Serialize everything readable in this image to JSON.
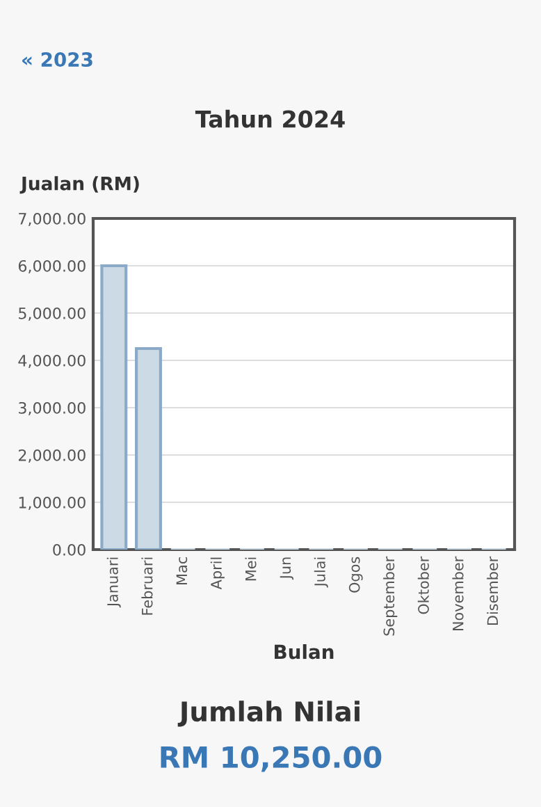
{
  "chart_data": {
    "type": "bar",
    "title": "Tahun 2024",
    "xlabel": "Bulan",
    "ylabel": "Jualan (RM)",
    "categories": [
      "Januari",
      "Februari",
      "Mac",
      "April",
      "Mei",
      "Jun",
      "Julai",
      "Ogos",
      "September",
      "Oktober",
      "November",
      "Disember"
    ],
    "values": [
      6000,
      4250,
      0,
      0,
      0,
      0,
      0,
      0,
      0,
      0,
      0,
      0
    ],
    "color": "#ccdae6",
    "ylim": [
      0,
      7000
    ],
    "yticks": [
      {
        "value": 0,
        "label": "0.00"
      },
      {
        "value": 1000,
        "label": "1,000.00"
      },
      {
        "value": 2000,
        "label": "2,000.00"
      },
      {
        "value": 3000,
        "label": "3,000.00"
      },
      {
        "value": 4000,
        "label": "4,000.00"
      },
      {
        "value": 5000,
        "label": "5,000.00"
      },
      {
        "value": 6000,
        "label": "6,000.00"
      },
      {
        "value": 7000,
        "label": "7,000.00"
      }
    ],
    "grid": "y",
    "annotations": [
      "« 2023",
      "Jumlah Nilai",
      "RM 10,250.00"
    ]
  }
}
